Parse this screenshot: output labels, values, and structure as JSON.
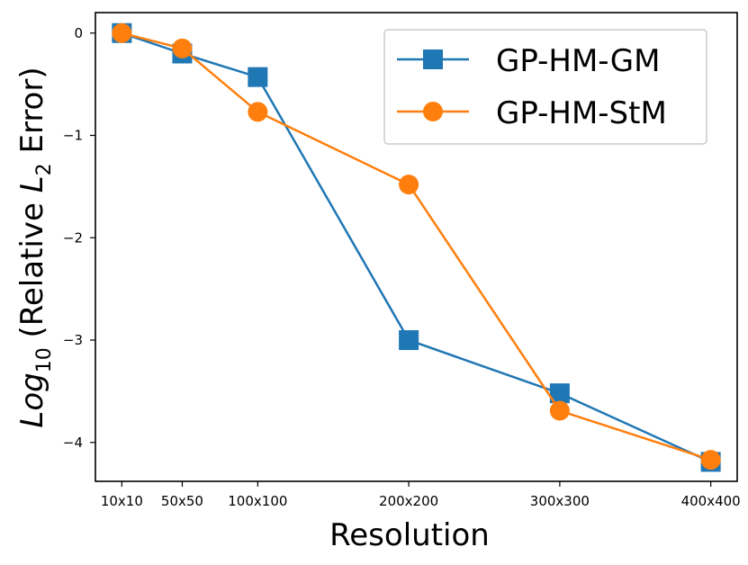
{
  "chart_data": {
    "type": "line",
    "title": "",
    "xlabel": "Resolution",
    "ylabel": {
      "prefix": "Log",
      "prefix_sub": "10",
      "middle": " (Relative ",
      "var": "L",
      "var_sub": "2",
      "suffix": " Error)"
    },
    "x": [
      10,
      50,
      100,
      200,
      300,
      400
    ],
    "x_tick_labels": [
      "10x10",
      "50x50",
      "100x100",
      "200x200",
      "300x300",
      "400x400"
    ],
    "xlim": [
      -7.5,
      417.5
    ],
    "y_ticks": [
      0,
      -1,
      -2,
      -3,
      -4
    ],
    "y_tick_labels": [
      "0",
      "−1",
      "−2",
      "−3",
      "−4"
    ],
    "ylim": [
      -4.38,
      0.2
    ],
    "grid": false,
    "legend_position": "top-right",
    "series": [
      {
        "name": "GP-HM-GM",
        "color": "#1f77b4",
        "marker": "square",
        "values": [
          0.0,
          -0.2,
          -0.43,
          -3.0,
          -3.52,
          -4.19
        ]
      },
      {
        "name": "GP-HM-StM",
        "color": "#ff7f0e",
        "marker": "circle",
        "values": [
          0.0,
          -0.15,
          -0.77,
          -1.48,
          -3.69,
          -4.17
        ]
      }
    ]
  }
}
